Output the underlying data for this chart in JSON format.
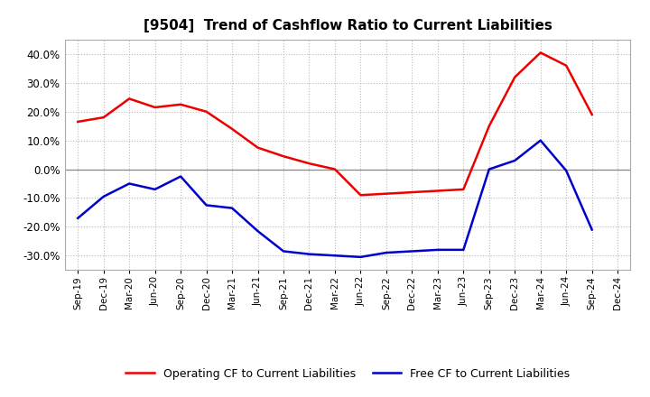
{
  "title": "[9504]  Trend of Cashflow Ratio to Current Liabilities",
  "x_labels": [
    "Sep-19",
    "Dec-19",
    "Mar-20",
    "Jun-20",
    "Sep-20",
    "Dec-20",
    "Mar-21",
    "Jun-21",
    "Sep-21",
    "Dec-21",
    "Mar-22",
    "Jun-22",
    "Sep-22",
    "Dec-22",
    "Mar-23",
    "Jun-23",
    "Sep-23",
    "Dec-23",
    "Mar-24",
    "Jun-24",
    "Sep-24",
    "Dec-24"
  ],
  "operating_cf": [
    16.5,
    18.0,
    24.5,
    21.5,
    22.5,
    20.0,
    14.0,
    7.5,
    4.5,
    2.0,
    0.0,
    -9.0,
    -8.5,
    -8.0,
    -7.5,
    -7.0,
    15.0,
    32.0,
    40.5,
    36.0,
    19.0,
    null
  ],
  "free_cf": [
    -17.0,
    -9.5,
    -5.0,
    -7.0,
    -2.5,
    -12.5,
    -13.5,
    -21.5,
    -28.5,
    -29.5,
    -30.0,
    -30.5,
    -29.0,
    -28.5,
    -28.0,
    -28.0,
    0.0,
    3.0,
    10.0,
    -0.5,
    -21.0,
    null
  ],
  "ylim": [
    -35,
    45
  ],
  "yticks": [
    -30.0,
    -20.0,
    -10.0,
    0.0,
    10.0,
    20.0,
    30.0,
    40.0
  ],
  "operating_color": "#EE0000",
  "free_color": "#0000CC",
  "background_color": "#FFFFFF",
  "plot_bg_color": "#FFFFFF",
  "grid_color": "#BBBBBB",
  "zero_line_color": "#888888",
  "legend_labels": [
    "Operating CF to Current Liabilities",
    "Free CF to Current Liabilities"
  ]
}
